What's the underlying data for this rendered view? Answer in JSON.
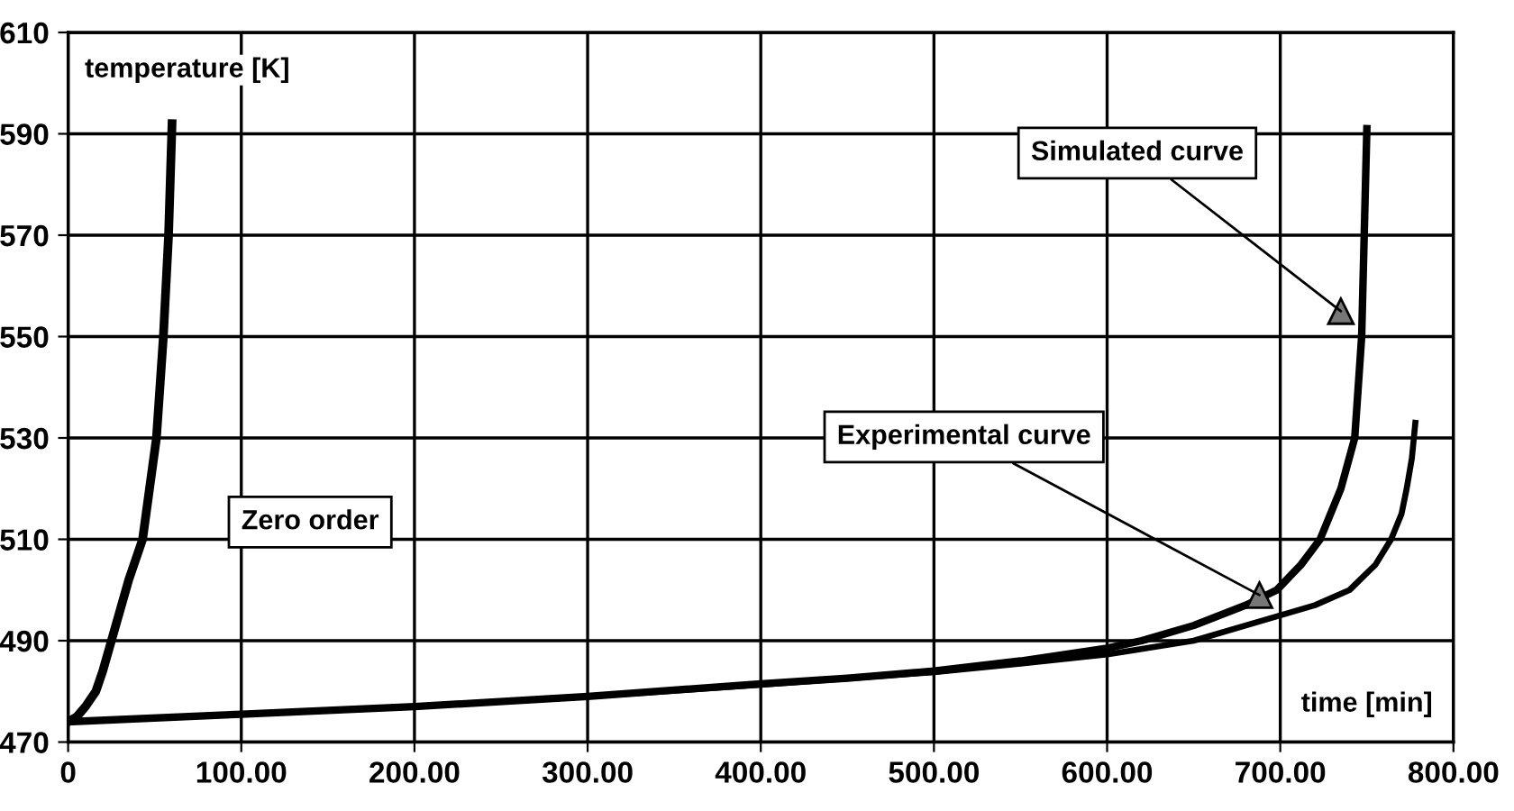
{
  "chart_data": {
    "type": "line",
    "xlabel": "time [min]",
    "ylabel": "temperature [K]",
    "xlim": [
      0,
      800
    ],
    "ylim": [
      470,
      610
    ],
    "xticks": [
      0,
      {
        "value": 100,
        "label": "100.00"
      },
      {
        "value": 200,
        "label": "200.00"
      },
      {
        "value": 300,
        "label": "300.00"
      },
      {
        "value": 400,
        "label": "400.00"
      },
      {
        "value": 500,
        "label": "500.00"
      },
      {
        "value": 600,
        "label": "600.00"
      },
      {
        "value": 700,
        "label": "700.00"
      },
      {
        "value": 800,
        "label": "800.00"
      }
    ],
    "yticks": [
      470,
      490,
      510,
      530,
      550,
      570,
      590,
      610
    ],
    "grid": true,
    "marker": "none",
    "line_style": "solid",
    "series": [
      {
        "color": "#000000",
        "x": [
          0,
          5,
          10,
          16,
          20,
          25,
          30,
          35,
          43,
          47,
          51,
          55,
          58,
          60
        ],
        "values": [
          474,
          475,
          477,
          480,
          484,
          490,
          496,
          502,
          510,
          520,
          530,
          550,
          570,
          592
        ]
      },
      {
        "color": "#000000",
        "x": [
          0,
          100,
          200,
          300,
          400,
          450,
          500,
          550,
          600,
          620,
          650,
          680,
          698,
          712,
          723,
          735,
          743,
          747,
          750
        ],
        "values": [
          474,
          475.5,
          477,
          479,
          481.5,
          482.6,
          484,
          486,
          488.5,
          490,
          493,
          497,
          500,
          505,
          510,
          520,
          530,
          550,
          591
        ]
      },
      {
        "color": "#000000",
        "x": [
          0,
          100,
          200,
          300,
          400,
          500,
          550,
          600,
          650,
          700,
          720,
          740,
          755,
          764,
          770,
          773,
          776,
          778
        ],
        "values": [
          474,
          475.5,
          477,
          479,
          481.3,
          483.8,
          485.5,
          487.3,
          490,
          495,
          497,
          500,
          505,
          510,
          515,
          520,
          526,
          533
        ]
      }
    ],
    "annotations": [
      {
        "text": "Zero order"
      },
      {
        "text": "Simulated curve",
        "x": 735,
        "y": 555
      },
      {
        "text": "Experimental curve",
        "x": 688,
        "y": 499
      }
    ]
  }
}
